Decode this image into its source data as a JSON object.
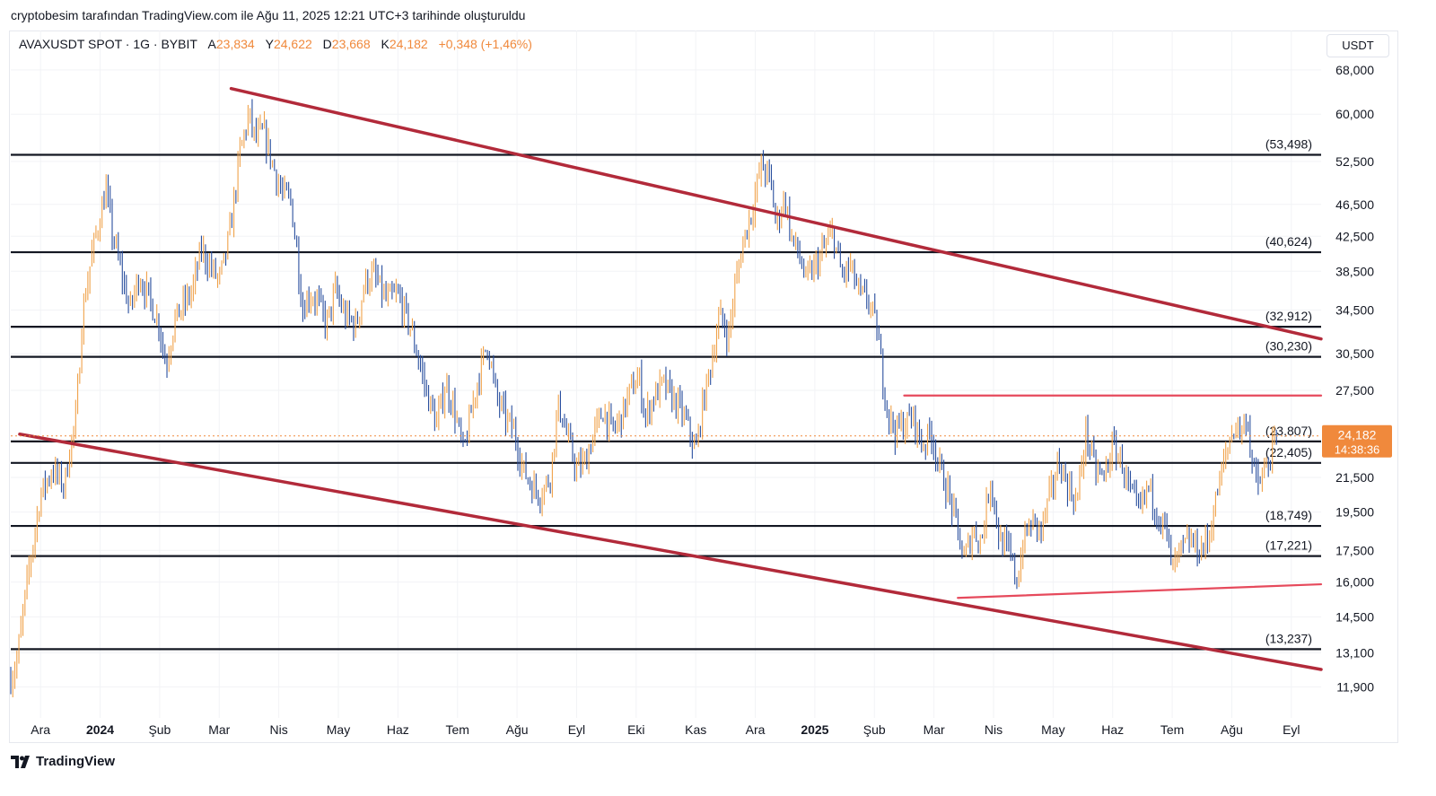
{
  "header": {
    "credit": "cryptobesim tarafından TradingView.com ile Ağu 11, 2025 12:21 UTC+3 tarihinde oluşturuldu"
  },
  "legend": {
    "symbol": "AVAXUSDT SPOT · 1G · BYBIT",
    "open_label": "A",
    "open": "23,834",
    "high_label": "Y",
    "high": "24,622",
    "low_label": "D",
    "low": "23,668",
    "close_label": "K",
    "close": "24,182",
    "change": "+0,348 (+1,46%)"
  },
  "currency": "USDT",
  "footer": {
    "brand": "TradingView"
  },
  "colors": {
    "up": "#f0a24a",
    "down": "#2a4f9e",
    "trend": "#b22a3a",
    "pink": "#e64a5c",
    "level": "#131722",
    "price_tag": "#f0893c"
  },
  "chart_data": {
    "type": "candlestick",
    "title": "AVAXUSDT SPOT · 1G · BYBIT",
    "scale": "log",
    "ylim": [
      10.9,
      76
    ],
    "y_ticks": [
      68,
      60,
      52.5,
      46.5,
      42.5,
      38.5,
      34.5,
      30.5,
      27.5,
      21.5,
      19.5,
      17.5,
      16,
      14.5,
      13.1,
      11.9
    ],
    "y_tick_labels": [
      "68,000",
      "60,000",
      "52,500",
      "46,500",
      "42,500",
      "38,500",
      "34,500",
      "30,500",
      "27,500",
      "21,500",
      "19,500",
      "17,500",
      "16,000",
      "14,500",
      "13,100",
      "11,900"
    ],
    "x_labels": [
      {
        "label": "Ara",
        "t": 0.5
      },
      {
        "label": "2024",
        "t": 1.5,
        "bold": true
      },
      {
        "label": "Şub",
        "t": 2.5
      },
      {
        "label": "Mar",
        "t": 3.5
      },
      {
        "label": "Nis",
        "t": 4.5
      },
      {
        "label": "May",
        "t": 5.5
      },
      {
        "label": "Haz",
        "t": 6.5
      },
      {
        "label": "Tem",
        "t": 7.5
      },
      {
        "label": "Ağu",
        "t": 8.5
      },
      {
        "label": "Eyl",
        "t": 9.5
      },
      {
        "label": "Eki",
        "t": 10.5
      },
      {
        "label": "Kas",
        "t": 11.5
      },
      {
        "label": "Ara",
        "t": 12.5
      },
      {
        "label": "2025",
        "t": 13.5,
        "bold": true
      },
      {
        "label": "Şub",
        "t": 14.5
      },
      {
        "label": "Mar",
        "t": 15.5
      },
      {
        "label": "Nis",
        "t": 16.5
      },
      {
        "label": "May",
        "t": 17.5
      },
      {
        "label": "Haz",
        "t": 18.5
      },
      {
        "label": "Tem",
        "t": 19.5
      },
      {
        "label": "Ağu",
        "t": 20.5
      },
      {
        "label": "Eyl",
        "t": 21.5
      }
    ],
    "levels": [
      {
        "value": 53.498,
        "label": "(53,498)"
      },
      {
        "value": 40.624,
        "label": "(40,624)"
      },
      {
        "value": 32.912,
        "label": "(32,912)"
      },
      {
        "value": 30.23,
        "label": "(30,230)"
      },
      {
        "value": 23.807,
        "label": "(23,807)"
      },
      {
        "value": 22.405,
        "label": "(22,405)"
      },
      {
        "value": 18.749,
        "label": "(18,749)"
      },
      {
        "value": 17.221,
        "label": "(17,221)"
      },
      {
        "value": 13.237,
        "label": "(13,237)"
      }
    ],
    "trendlines": [
      {
        "name": "upper-wedge-line",
        "color": "trend",
        "points": [
          [
            3.7,
            64.5
          ],
          [
            22.0,
            31.8
          ]
        ]
      },
      {
        "name": "lower-wedge-line",
        "color": "trend",
        "points": [
          [
            0.15,
            24.3
          ],
          [
            22.0,
            12.5
          ]
        ]
      },
      {
        "name": "range-top-line",
        "color": "pink",
        "points": [
          [
            15.0,
            27.1
          ],
          [
            22.0,
            27.1
          ]
        ]
      },
      {
        "name": "range-bottom-line",
        "color": "pink",
        "points": [
          [
            15.9,
            15.3
          ],
          [
            22.0,
            15.9
          ]
        ]
      }
    ],
    "last_price": {
      "value": 24.182,
      "label": "24,182",
      "countdown": "14:38:36",
      "t": 20.8
    },
    "anchors": [
      [
        0.0,
        12.2
      ],
      [
        0.1,
        12.8
      ],
      [
        0.3,
        16.5
      ],
      [
        0.5,
        20.5
      ],
      [
        0.7,
        22.0
      ],
      [
        0.9,
        21.0
      ],
      [
        1.0,
        23.5
      ],
      [
        1.1,
        25.5
      ],
      [
        1.2,
        34.0
      ],
      [
        1.35,
        40.0
      ],
      [
        1.5,
        45.0
      ],
      [
        1.6,
        48.5
      ],
      [
        1.7,
        43.0
      ],
      [
        1.85,
        38.5
      ],
      [
        2.0,
        34.5
      ],
      [
        2.15,
        38.0
      ],
      [
        2.3,
        36.0
      ],
      [
        2.5,
        33.0
      ],
      [
        2.6,
        29.5
      ],
      [
        2.75,
        33.5
      ],
      [
        2.9,
        35.0
      ],
      [
        3.05,
        36.5
      ],
      [
        3.2,
        41.0
      ],
      [
        3.35,
        39.0
      ],
      [
        3.5,
        37.5
      ],
      [
        3.6,
        40.0
      ],
      [
        3.7,
        44.0
      ],
      [
        3.85,
        54.0
      ],
      [
        4.0,
        60.0
      ],
      [
        4.1,
        56.0
      ],
      [
        4.25,
        57.0
      ],
      [
        4.4,
        52.0
      ],
      [
        4.55,
        48.0
      ],
      [
        4.7,
        47.0
      ],
      [
        4.8,
        41.0
      ],
      [
        4.9,
        34.5
      ],
      [
        5.0,
        36.0
      ],
      [
        5.15,
        35.5
      ],
      [
        5.3,
        33.0
      ],
      [
        5.45,
        36.5
      ],
      [
        5.6,
        34.0
      ],
      [
        5.8,
        33.0
      ],
      [
        5.95,
        37.5
      ],
      [
        6.1,
        38.0
      ],
      [
        6.3,
        35.5
      ],
      [
        6.5,
        36.0
      ],
      [
        6.7,
        33.0
      ],
      [
        6.85,
        30.0
      ],
      [
        7.0,
        27.0
      ],
      [
        7.15,
        25.0
      ],
      [
        7.3,
        28.0
      ],
      [
        7.45,
        26.0
      ],
      [
        7.6,
        23.0
      ],
      [
        7.8,
        27.5
      ],
      [
        8.0,
        31.5
      ],
      [
        8.15,
        27.0
      ],
      [
        8.3,
        25.5
      ],
      [
        8.45,
        24.5
      ],
      [
        8.6,
        22.0
      ],
      [
        8.75,
        21.0
      ],
      [
        8.9,
        20.5
      ],
      [
        9.05,
        21.5
      ],
      [
        9.2,
        26.5
      ],
      [
        9.35,
        24.0
      ],
      [
        9.5,
        22.0
      ],
      [
        9.65,
        22.5
      ],
      [
        9.8,
        24.5
      ],
      [
        9.95,
        26.0
      ],
      [
        10.1,
        24.5
      ],
      [
        10.25,
        25.5
      ],
      [
        10.4,
        27.5
      ],
      [
        10.55,
        28.5
      ],
      [
        10.65,
        25.5
      ],
      [
        10.8,
        27.0
      ],
      [
        10.95,
        28.0
      ],
      [
        11.1,
        27.0
      ],
      [
        11.25,
        26.0
      ],
      [
        11.4,
        24.5
      ],
      [
        11.5,
        23.0
      ],
      [
        11.6,
        26.0
      ],
      [
        11.75,
        29.5
      ],
      [
        11.9,
        34.0
      ],
      [
        12.05,
        32.0
      ],
      [
        12.15,
        36.5
      ],
      [
        12.3,
        42.0
      ],
      [
        12.45,
        46.0
      ],
      [
        12.6,
        52.0
      ],
      [
        12.75,
        50.0
      ],
      [
        12.85,
        44.0
      ],
      [
        13.0,
        47.5
      ],
      [
        13.1,
        42.5
      ],
      [
        13.25,
        40.0
      ],
      [
        13.35,
        37.5
      ],
      [
        13.5,
        39.0
      ],
      [
        13.65,
        41.0
      ],
      [
        13.8,
        43.0
      ],
      [
        13.95,
        38.0
      ],
      [
        14.1,
        39.0
      ],
      [
        14.25,
        36.0
      ],
      [
        14.4,
        35.5
      ],
      [
        14.55,
        32.5
      ],
      [
        14.65,
        28.0
      ],
      [
        14.75,
        25.5
      ],
      [
        14.85,
        24.5
      ],
      [
        15.0,
        25.0
      ],
      [
        15.15,
        25.5
      ],
      [
        15.3,
        23.5
      ],
      [
        15.45,
        24.5
      ],
      [
        15.6,
        22.0
      ],
      [
        15.75,
        20.5
      ],
      [
        15.9,
        18.5
      ],
      [
        16.0,
        17.0
      ],
      [
        16.15,
        18.5
      ],
      [
        16.3,
        18.0
      ],
      [
        16.45,
        21.5
      ],
      [
        16.6,
        18.0
      ],
      [
        16.75,
        17.5
      ],
      [
        16.9,
        16.0
      ],
      [
        17.0,
        18.0
      ],
      [
        17.15,
        19.0
      ],
      [
        17.3,
        18.5
      ],
      [
        17.45,
        20.5
      ],
      [
        17.6,
        22.5
      ],
      [
        17.75,
        21.0
      ],
      [
        17.9,
        20.0
      ],
      [
        18.05,
        24.5
      ],
      [
        18.2,
        22.0
      ],
      [
        18.35,
        21.5
      ],
      [
        18.5,
        23.5
      ],
      [
        18.65,
        22.5
      ],
      [
        18.8,
        20.5
      ],
      [
        18.95,
        19.5
      ],
      [
        19.1,
        21.0
      ],
      [
        19.25,
        19.5
      ],
      [
        19.4,
        18.5
      ],
      [
        19.5,
        16.5
      ],
      [
        19.65,
        17.5
      ],
      [
        19.8,
        18.0
      ],
      [
        19.95,
        17.5
      ],
      [
        20.1,
        18.0
      ],
      [
        20.25,
        20.5
      ],
      [
        20.4,
        23.0
      ],
      [
        20.55,
        25.0
      ],
      [
        20.7,
        24.5
      ],
      [
        20.75,
        26.0
      ],
      [
        20.85,
        22.0
      ],
      [
        20.95,
        21.0
      ],
      [
        21.05,
        21.8
      ],
      [
        21.15,
        22.8
      ],
      [
        21.25,
        24.18
      ]
    ]
  }
}
